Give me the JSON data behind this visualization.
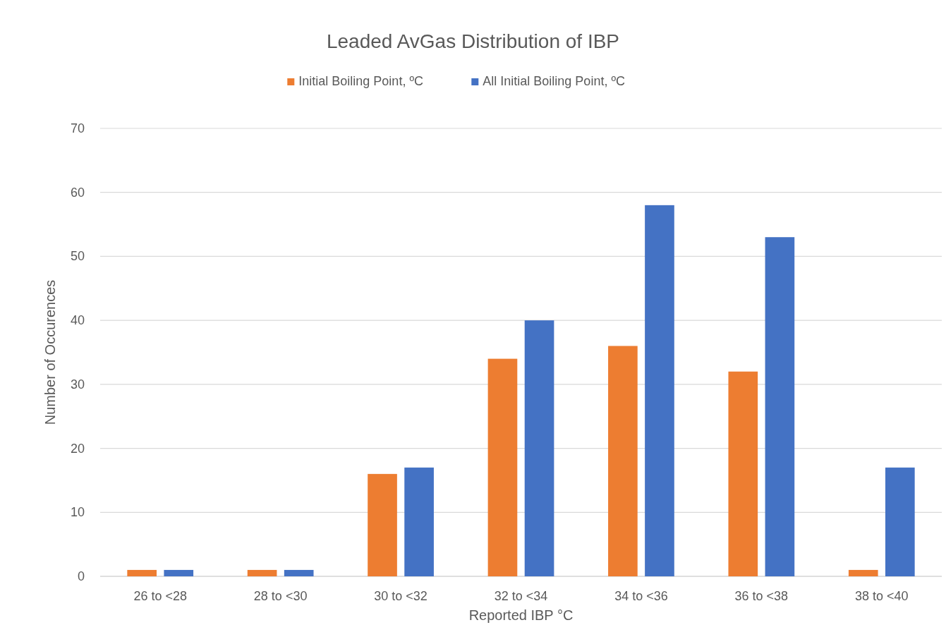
{
  "chart_data": {
    "type": "bar",
    "title": "Leaded AvGas Distribution of IBP",
    "xlabel": "Reported IBP °C",
    "ylabel": "Number of Occurences",
    "categories": [
      "26 to <28",
      "28 to <30",
      "30 to <32",
      "32 to <34",
      "34 to <36",
      "36 to <38",
      "38 to <40"
    ],
    "series": [
      {
        "name": "Initial Boiling Point, ºC",
        "color": "#ed7d31",
        "values": [
          1,
          1,
          16,
          34,
          36,
          32,
          1
        ]
      },
      {
        "name": "All Initial Boiling Point, ºC",
        "color": "#4472c4",
        "values": [
          1,
          1,
          17,
          40,
          58,
          53,
          17
        ]
      }
    ],
    "ylim": [
      0,
      70
    ],
    "yticks": [
      0,
      10,
      20,
      30,
      40,
      50,
      60,
      70
    ],
    "grid": "y",
    "legend": "top"
  }
}
